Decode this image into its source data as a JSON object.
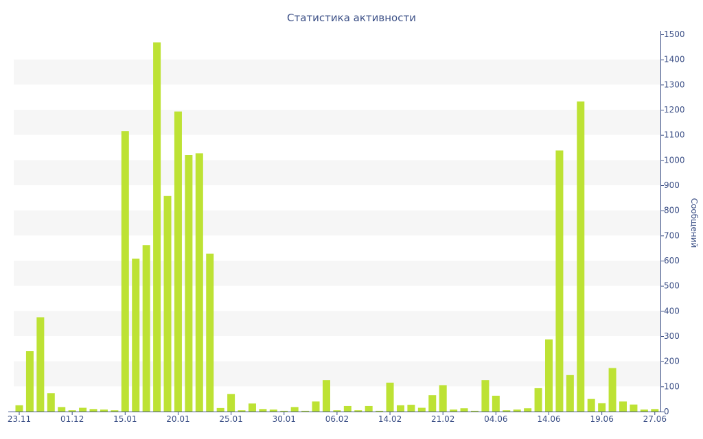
{
  "chart_data": {
    "type": "bar",
    "title": "Статистика активности",
    "xlabel": "",
    "ylabel": "Сообщений",
    "ylim": [
      0,
      1500
    ],
    "y_ticks": [
      0,
      100,
      200,
      300,
      400,
      500,
      600,
      700,
      800,
      900,
      1000,
      1100,
      1200,
      1300,
      1400,
      1500
    ],
    "y_axis_position": "right",
    "grid": "alternating horizontal bands",
    "bar_color": "#bde234",
    "band_color": "#f6f6f6",
    "axis_color": "#3b4f86",
    "x_ticks": [
      {
        "label": "23.11",
        "index": 0
      },
      {
        "label": "01.12",
        "index": 5
      },
      {
        "label": "15.01",
        "index": 10
      },
      {
        "label": "20.01",
        "index": 15
      },
      {
        "label": "25.01",
        "index": 20
      },
      {
        "label": "30.01",
        "index": 25
      },
      {
        "label": "06.02",
        "index": 30
      },
      {
        "label": "14.02",
        "index": 35
      },
      {
        "label": "21.02",
        "index": 40
      },
      {
        "label": "04.06",
        "index": 45
      },
      {
        "label": "14.06",
        "index": 50
      },
      {
        "label": "19.06",
        "index": 55
      },
      {
        "label": "27.06",
        "index": 60
      }
    ],
    "values": [
      25,
      240,
      375,
      73,
      18,
      5,
      15,
      10,
      8,
      5,
      1115,
      608,
      662,
      1468,
      857,
      1193,
      1020,
      1027,
      628,
      14,
      70,
      5,
      32,
      10,
      8,
      3,
      18,
      3,
      40,
      125,
      5,
      22,
      5,
      22,
      3,
      115,
      25,
      27,
      15,
      65,
      105,
      8,
      13,
      3,
      125,
      63,
      5,
      8,
      13,
      93,
      287,
      1038,
      145,
      1233,
      50,
      33,
      173,
      40,
      28,
      8,
      10
    ]
  }
}
